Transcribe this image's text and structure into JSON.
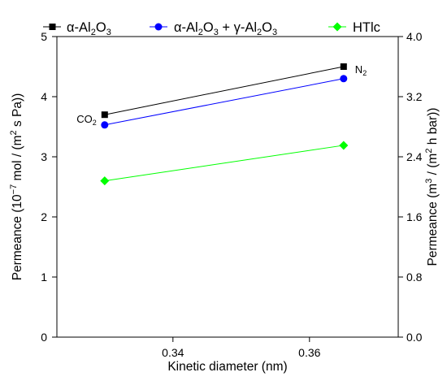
{
  "chart_data": {
    "type": "line",
    "xlabel": "Kinetic diameter (nm)",
    "ylabel": {
      "prefix": "Permeance (10",
      "sup1": "−7",
      "mid": " mol / (m",
      "sup2": "2",
      "suffix": " s Pa))"
    },
    "y2label": {
      "prefix": "Permeance (m",
      "sup1": "3",
      "mid": " / (m",
      "sup2": "2",
      "suffix": " h bar))"
    },
    "xlim": [
      0.323,
      0.373
    ],
    "ylim": [
      0,
      5
    ],
    "y2lim": [
      0,
      4
    ],
    "xticks": [
      "0.34",
      "0.36"
    ],
    "yticks": [
      "0",
      "1",
      "2",
      "3",
      "4",
      "5"
    ],
    "y2ticks": [
      "0.0",
      "0.8",
      "1.6",
      "2.4",
      "3.2",
      "4.0"
    ],
    "grid": false,
    "legend_position": "top",
    "x": [
      0.33,
      0.365
    ],
    "series": [
      {
        "name": {
          "a": "α-Al",
          "b": "2",
          "c": "O",
          "d": "3"
        },
        "values": [
          3.7,
          4.5
        ],
        "color": "#000000",
        "marker": "square"
      },
      {
        "name": {
          "a": "α-Al",
          "b": "2",
          "c": "O",
          "d": "3",
          "e": " + γ-Al",
          "f": "2",
          "g": "O",
          "h": "3"
        },
        "values": [
          3.53,
          4.3
        ],
        "color": "#0000ff",
        "marker": "circle"
      },
      {
        "name": {
          "a": "HTlc"
        },
        "values": [
          2.6,
          3.19
        ],
        "color": "#00ff00",
        "marker": "diamond"
      }
    ],
    "annotations": [
      {
        "main": "CO",
        "sub": "2",
        "x": 0.33,
        "y": 3.7,
        "side": "left"
      },
      {
        "main": "N",
        "sub": "2",
        "x": 0.365,
        "y": 4.5,
        "side": "right"
      }
    ]
  }
}
